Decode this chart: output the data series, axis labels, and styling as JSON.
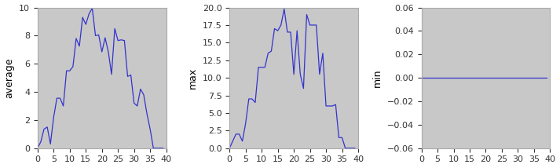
{
  "subplot_labels": [
    "average",
    "max",
    "min"
  ],
  "xlim": [
    0,
    40
  ],
  "avg_ylim": [
    0,
    10
  ],
  "max_ylim": [
    0,
    20
  ],
  "min_ylim": [
    -0.06,
    0.06
  ],
  "line_color": "#3333cc",
  "axes_bg_color": "#c8c8c8",
  "fig_bg_color": "#ffffff",
  "figsize": [
    7.13,
    2.14
  ],
  "dpi": 100,
  "avg": [
    0.0,
    0.45,
    1.35,
    1.5,
    0.3,
    2.2,
    3.55,
    3.55,
    3.0,
    5.5,
    5.5,
    5.8,
    7.8,
    7.25,
    9.3,
    8.8,
    9.55,
    9.95,
    8.0,
    8.05,
    6.85,
    7.85,
    6.85,
    5.25,
    8.5,
    7.65,
    7.7,
    7.65,
    5.1,
    5.2,
    3.2,
    3.0,
    4.2,
    3.8,
    2.45,
    1.35,
    0.0,
    0.0,
    0.0,
    0.0
  ],
  "mx": [
    0.0,
    1.0,
    2.0,
    2.0,
    1.0,
    3.5,
    7.0,
    7.0,
    6.5,
    11.5,
    11.5,
    11.5,
    13.5,
    13.8,
    17.0,
    16.7,
    17.5,
    19.8,
    16.5,
    16.5,
    10.5,
    16.7,
    10.5,
    8.5,
    19.0,
    17.5,
    17.5,
    17.5,
    10.5,
    13.5,
    6.0,
    6.0,
    6.0,
    6.2,
    1.5,
    1.5,
    0.0,
    0.0,
    0.0,
    0.0
  ],
  "mn": [
    0.0,
    0.0,
    0.0,
    0.0,
    0.0,
    0.0,
    0.0,
    0.0,
    0.0,
    0.0,
    0.0,
    0.0,
    0.0,
    0.0,
    0.0,
    0.0,
    0.0,
    0.0,
    0.0,
    0.0,
    0.0,
    0.0,
    0.0,
    0.0,
    0.0,
    0.0,
    0.0,
    0.0,
    0.0,
    0.0,
    0.0,
    0.0,
    0.0,
    0.0,
    0.0,
    0.0,
    0.0,
    0.0,
    0.0,
    0.0
  ],
  "xticks": [
    0,
    5,
    10,
    15,
    20,
    25,
    30,
    35,
    40
  ],
  "tick_fontsize": 8,
  "label_fontsize": 9
}
